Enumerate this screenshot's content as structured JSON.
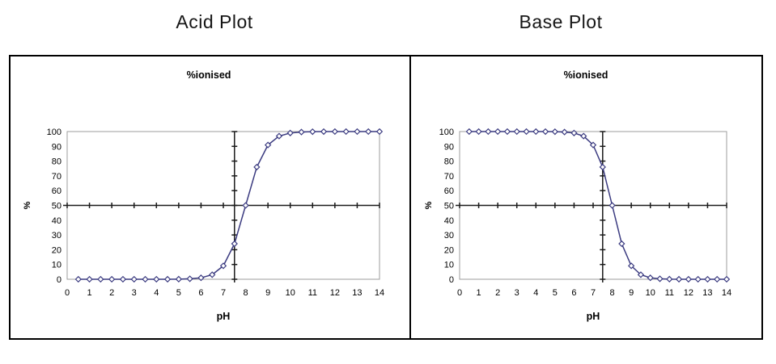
{
  "page": {
    "background": "#ffffff"
  },
  "panels": [
    {
      "title": "Acid Plot"
    },
    {
      "title": "Base Plot"
    }
  ],
  "chart_data": [
    {
      "type": "line",
      "title": "%ionised",
      "xlabel": "pH",
      "ylabel": "%",
      "x": [
        0.5,
        1,
        1.5,
        2,
        2.5,
        3,
        3.5,
        4,
        4.5,
        5,
        5.5,
        6,
        6.5,
        7,
        7.5,
        8,
        8.5,
        9,
        9.5,
        10,
        10.5,
        11,
        11.5,
        12,
        12.5,
        13,
        13.5,
        14
      ],
      "values": [
        0,
        0,
        0,
        0,
        0,
        0,
        0,
        0.01,
        0.03,
        0.1,
        0.32,
        0.99,
        3.07,
        9.09,
        24.03,
        50,
        75.97,
        90.91,
        96.94,
        99.01,
        99.68,
        99.9,
        99.97,
        100,
        100,
        100,
        100,
        100
      ],
      "xlim": [
        0,
        14
      ],
      "ylim": [
        0,
        100
      ],
      "x_ticks": [
        0,
        1,
        2,
        3,
        4,
        5,
        6,
        7,
        8,
        9,
        10,
        11,
        12,
        13,
        14
      ],
      "y_ticks": [
        0,
        10,
        20,
        30,
        40,
        50,
        60,
        70,
        80,
        90,
        100
      ],
      "axes_cross": {
        "x": 7.5,
        "y": 50
      },
      "marker": "open-diamond",
      "grid": false,
      "legend": "none",
      "colors": {
        "series": "#3b3b80",
        "axis": "#1a1a1a",
        "plot_border": "#9c9c9c"
      }
    },
    {
      "type": "line",
      "title": "%ionised",
      "xlabel": "pH",
      "ylabel": "%",
      "x": [
        0.5,
        1,
        1.5,
        2,
        2.5,
        3,
        3.5,
        4,
        4.5,
        5,
        5.5,
        6,
        6.5,
        7,
        7.5,
        8,
        8.5,
        9,
        9.5,
        10,
        10.5,
        11,
        11.5,
        12,
        12.5,
        13,
        13.5,
        14
      ],
      "values": [
        100,
        100,
        100,
        100,
        100,
        100,
        100,
        99.99,
        99.97,
        99.9,
        99.68,
        99.01,
        96.94,
        90.91,
        75.97,
        50,
        24.03,
        9.09,
        3.07,
        0.99,
        0.32,
        0.1,
        0.03,
        0.01,
        0,
        0,
        0,
        0
      ],
      "xlim": [
        0,
        14
      ],
      "ylim": [
        0,
        100
      ],
      "x_ticks": [
        0,
        1,
        2,
        3,
        4,
        5,
        6,
        7,
        8,
        9,
        10,
        11,
        12,
        13,
        14
      ],
      "y_ticks": [
        0,
        10,
        20,
        30,
        40,
        50,
        60,
        70,
        80,
        90,
        100
      ],
      "axes_cross": {
        "x": 7.5,
        "y": 50
      },
      "marker": "open-diamond",
      "grid": false,
      "legend": "none",
      "colors": {
        "series": "#3b3b80",
        "axis": "#1a1a1a",
        "plot_border": "#9c9c9c"
      }
    }
  ]
}
